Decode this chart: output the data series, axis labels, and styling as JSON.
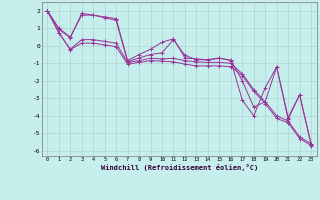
{
  "xlabel": "Windchill (Refroidissement éolien,°C)",
  "background_color": "#c5eeec",
  "grid_color": "#aacccc",
  "line_color": "#993399",
  "xlim": [
    -0.5,
    23.5
  ],
  "ylim": [
    -6.3,
    2.5
  ],
  "x": [
    0,
    1,
    2,
    3,
    4,
    5,
    6,
    7,
    8,
    9,
    10,
    11,
    12,
    13,
    14,
    15,
    16,
    17,
    18,
    19,
    20,
    21,
    22,
    23
  ],
  "series": [
    [
      2.0,
      1.0,
      0.5,
      1.75,
      1.75,
      1.65,
      1.55,
      -0.85,
      -0.5,
      -0.2,
      0.2,
      0.4,
      -0.7,
      -0.75,
      -0.8,
      -0.7,
      -0.85,
      -3.1,
      -4.0,
      -2.4,
      -1.2,
      -4.1,
      -2.8,
      -5.6
    ],
    [
      2.0,
      0.95,
      0.45,
      1.85,
      1.75,
      1.6,
      1.45,
      -0.9,
      -0.7,
      -0.5,
      -0.4,
      0.35,
      -0.55,
      -0.8,
      -0.8,
      -0.72,
      -0.82,
      -2.0,
      -3.5,
      -3.2,
      -1.2,
      -4.2,
      -2.8,
      -5.65
    ],
    [
      2.0,
      0.75,
      -0.2,
      0.35,
      0.35,
      0.25,
      0.15,
      -0.95,
      -0.85,
      -0.72,
      -0.75,
      -0.72,
      -0.85,
      -0.92,
      -0.95,
      -0.95,
      -1.0,
      -1.6,
      -2.5,
      -3.2,
      -4.0,
      -4.3,
      -5.2,
      -5.6
    ],
    [
      2.0,
      0.75,
      -0.22,
      0.15,
      0.15,
      0.05,
      -0.05,
      -1.05,
      -0.95,
      -0.85,
      -0.88,
      -0.92,
      -1.05,
      -1.15,
      -1.15,
      -1.15,
      -1.2,
      -1.7,
      -2.6,
      -3.3,
      -4.15,
      -4.4,
      -5.3,
      -5.7
    ]
  ]
}
